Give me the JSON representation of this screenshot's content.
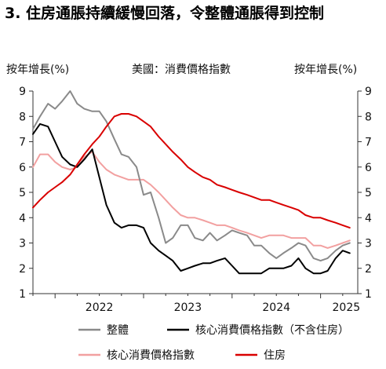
{
  "title": "3. 住房通脹持續緩慢回落，令整體通脹得到控制",
  "chart_data": {
    "type": "line",
    "subtitle": "美國：消費價格指數",
    "ylabel_left": "按年增長(%)",
    "ylabel_right": "按年增長(%)",
    "ylim": [
      1,
      9
    ],
    "yticks": [
      "1",
      "2",
      "3",
      "4",
      "5",
      "6",
      "7",
      "8",
      "9"
    ],
    "x_range": [
      2021.75,
      2025.42
    ],
    "x_tick_labels": [
      "2022",
      "2023",
      "2024",
      "2025"
    ],
    "grid": false,
    "legend_position": "bottom",
    "series": [
      {
        "name": "整體",
        "color": "#8a8a8a",
        "x": [
          2021.75,
          2021.83,
          2021.92,
          2022.0,
          2022.08,
          2022.17,
          2022.25,
          2022.33,
          2022.42,
          2022.5,
          2022.58,
          2022.67,
          2022.75,
          2022.83,
          2022.92,
          2023.0,
          2023.08,
          2023.17,
          2023.25,
          2023.33,
          2023.42,
          2023.5,
          2023.58,
          2023.67,
          2023.75,
          2023.83,
          2023.92,
          2024.0,
          2024.08,
          2024.17,
          2024.25,
          2024.33,
          2024.42,
          2024.5,
          2024.58,
          2024.67,
          2024.75,
          2024.83,
          2024.92,
          2025.0,
          2025.08,
          2025.17,
          2025.25,
          2025.33
        ],
        "y": [
          7.5,
          8.0,
          8.5,
          8.3,
          8.6,
          9.0,
          8.5,
          8.3,
          8.2,
          8.2,
          7.8,
          7.1,
          6.5,
          6.4,
          6.0,
          4.9,
          5.0,
          4.0,
          3.0,
          3.2,
          3.7,
          3.7,
          3.2,
          3.1,
          3.4,
          3.1,
          3.3,
          3.5,
          3.4,
          3.3,
          2.9,
          2.9,
          2.6,
          2.4,
          2.6,
          2.8,
          3.0,
          2.9,
          2.4,
          2.3,
          2.4,
          2.7,
          2.9,
          3.0
        ]
      },
      {
        "name": "核心消費價格指數（不含住房）",
        "color": "#000000",
        "x": [
          2021.75,
          2021.83,
          2021.92,
          2022.0,
          2022.08,
          2022.17,
          2022.25,
          2022.33,
          2022.42,
          2022.5,
          2022.58,
          2022.67,
          2022.75,
          2022.83,
          2022.92,
          2023.0,
          2023.08,
          2023.17,
          2023.25,
          2023.33,
          2023.42,
          2023.5,
          2023.58,
          2023.67,
          2023.75,
          2023.83,
          2023.92,
          2024.0,
          2024.08,
          2024.17,
          2024.25,
          2024.33,
          2024.42,
          2024.5,
          2024.58,
          2024.67,
          2024.75,
          2024.83,
          2024.92,
          2025.0,
          2025.08,
          2025.17,
          2025.25,
          2025.33
        ],
        "y": [
          7.3,
          7.7,
          7.6,
          7.0,
          6.4,
          6.1,
          6.0,
          6.3,
          6.7,
          5.6,
          4.5,
          3.8,
          3.6,
          3.7,
          3.7,
          3.6,
          3.0,
          2.7,
          2.5,
          2.3,
          1.9,
          2.0,
          2.1,
          2.2,
          2.2,
          2.3,
          2.4,
          2.1,
          1.8,
          1.8,
          1.8,
          1.8,
          2.0,
          2.0,
          2.0,
          2.1,
          2.4,
          2.0,
          1.8,
          1.8,
          1.9,
          2.4,
          2.7,
          2.6
        ]
      },
      {
        "name": "核心消費價格指數",
        "color": "#f2a0a0",
        "x": [
          2021.75,
          2021.83,
          2021.92,
          2022.0,
          2022.08,
          2022.17,
          2022.25,
          2022.33,
          2022.42,
          2022.5,
          2022.58,
          2022.67,
          2022.75,
          2022.83,
          2022.92,
          2023.0,
          2023.08,
          2023.17,
          2023.25,
          2023.33,
          2023.42,
          2023.5,
          2023.58,
          2023.67,
          2023.75,
          2023.83,
          2023.92,
          2024.0,
          2024.08,
          2024.17,
          2024.25,
          2024.33,
          2024.42,
          2024.5,
          2024.58,
          2024.67,
          2024.75,
          2024.83,
          2024.92,
          2025.0,
          2025.08,
          2025.17,
          2025.25,
          2025.33
        ],
        "y": [
          6.0,
          6.5,
          6.5,
          6.2,
          6.0,
          5.9,
          6.0,
          6.4,
          6.6,
          6.2,
          5.9,
          5.7,
          5.6,
          5.5,
          5.5,
          5.5,
          5.3,
          5.0,
          4.7,
          4.4,
          4.1,
          4.0,
          4.0,
          3.9,
          3.8,
          3.7,
          3.7,
          3.6,
          3.5,
          3.4,
          3.3,
          3.2,
          3.3,
          3.3,
          3.3,
          3.2,
          3.2,
          3.2,
          2.9,
          2.9,
          2.8,
          2.9,
          3.0,
          3.1
        ]
      },
      {
        "name": "住房",
        "color": "#d90000",
        "x": [
          2021.75,
          2021.83,
          2021.92,
          2022.0,
          2022.08,
          2022.17,
          2022.25,
          2022.33,
          2022.42,
          2022.5,
          2022.58,
          2022.67,
          2022.75,
          2022.83,
          2022.92,
          2023.0,
          2023.08,
          2023.17,
          2023.25,
          2023.33,
          2023.42,
          2023.5,
          2023.58,
          2023.67,
          2023.75,
          2023.83,
          2023.92,
          2024.0,
          2024.08,
          2024.17,
          2024.25,
          2024.33,
          2024.42,
          2024.5,
          2024.58,
          2024.67,
          2024.75,
          2024.83,
          2024.92,
          2025.0,
          2025.08,
          2025.17,
          2025.25,
          2025.33
        ],
        "y": [
          4.4,
          4.7,
          5.0,
          5.2,
          5.4,
          5.7,
          6.1,
          6.5,
          6.9,
          7.2,
          7.6,
          8.0,
          8.1,
          8.1,
          8.0,
          7.8,
          7.6,
          7.2,
          6.9,
          6.6,
          6.3,
          6.0,
          5.8,
          5.6,
          5.5,
          5.3,
          5.2,
          5.1,
          5.0,
          4.9,
          4.8,
          4.7,
          4.7,
          4.6,
          4.5,
          4.4,
          4.3,
          4.1,
          4.0,
          4.0,
          3.9,
          3.8,
          3.7,
          3.6
        ]
      }
    ]
  }
}
